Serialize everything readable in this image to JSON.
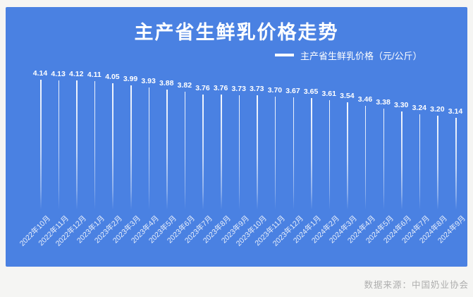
{
  "page": {
    "source_note": "数据来源：中国奶业协会"
  },
  "chart": {
    "title": "主产省生鲜乳价格走势",
    "legend_label": "主产省生鲜乳价格（元/公斤）",
    "colors": {
      "panel_bg": "#4a81e2",
      "series_line": "#ffffff",
      "title_text": "#ffffff",
      "axis_label_text": "#ffffff",
      "source_text": "#aeaeae"
    }
  },
  "chart_data": {
    "type": "line",
    "title": "主产省生鲜乳价格走势",
    "series_name": "主产省生鲜乳价格（元/公斤）",
    "ylabel": "元/公斤",
    "categories": [
      "2022年10月",
      "2022年11月",
      "2022年12月",
      "2023年1月",
      "2023年2月",
      "2023年3月",
      "2023年4月",
      "2023年5月",
      "2023年6月",
      "2023年7月",
      "2023年8月",
      "2023年9月",
      "2023年10月",
      "2023年11月",
      "2023年12月",
      "2024年1月",
      "2024年2月",
      "2024年3月",
      "2024年4月",
      "2024年5月",
      "2024年6月",
      "2024年7月",
      "2024年8月",
      "2024年9月"
    ],
    "values": [
      4.14,
      4.13,
      4.12,
      4.11,
      4.05,
      3.99,
      3.93,
      3.88,
      3.82,
      3.76,
      3.76,
      3.73,
      3.73,
      3.7,
      3.67,
      3.65,
      3.61,
      3.54,
      3.46,
      3.38,
      3.3,
      3.24,
      3.2,
      3.14
    ],
    "ylim": [
      3.0,
      4.2
    ],
    "grid": false,
    "legend_position": "top-right",
    "style": "vertical drop lines with value labels above each point, rotated x labels"
  }
}
